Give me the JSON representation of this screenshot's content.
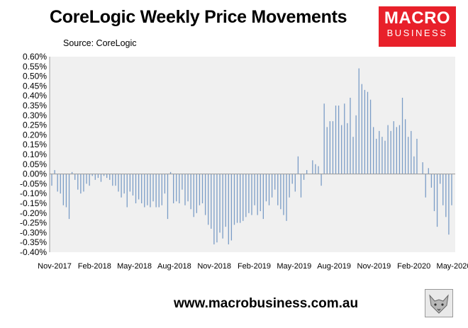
{
  "header": {
    "title": "CoreLogic Weekly Price Movements",
    "source": "Source: CoreLogic"
  },
  "logo": {
    "line1": "MACRO",
    "line2": "BUSINESS"
  },
  "footer": {
    "url": "www.macrobusiness.com.au"
  },
  "colors": {
    "bar": "#7a9cc6",
    "plot_bg": "#f0f0f0",
    "logo_bg": "#e8202a"
  },
  "chart_data": {
    "type": "bar",
    "title": "CoreLogic Weekly Price Movements",
    "source": "Source: CoreLogic",
    "ylim": [
      -0.4,
      0.6
    ],
    "y_ticks": [
      "0.60%",
      "0.55%",
      "0.50%",
      "0.45%",
      "0.40%",
      "0.35%",
      "0.30%",
      "0.25%",
      "0.20%",
      "0.15%",
      "0.10%",
      "0.05%",
      "0.00%",
      "-0.05%",
      "-0.10%",
      "-0.15%",
      "-0.20%",
      "-0.25%",
      "-0.30%",
      "-0.35%",
      "-0.40%"
    ],
    "x_ticks": [
      "Nov-2017",
      "Feb-2018",
      "May-2018",
      "Aug-2018",
      "Nov-2018",
      "Feb-2019",
      "May-2019",
      "Aug-2019",
      "Nov-2019",
      "Feb-2020",
      "May-2020"
    ],
    "grid": false,
    "legend": "none",
    "unit": "%",
    "series": [
      {
        "values": [
          -0.06,
          0.02,
          -0.09,
          -0.1,
          -0.16,
          -0.17,
          -0.23,
          0.01,
          -0.03,
          -0.08,
          -0.1,
          -0.09,
          -0.05,
          -0.06,
          -0.01,
          -0.03,
          -0.02,
          -0.04,
          -0.01,
          -0.02,
          -0.03,
          -0.06,
          -0.06,
          -0.09,
          -0.12,
          -0.1,
          -0.17,
          -0.09,
          -0.11,
          -0.15,
          -0.13,
          -0.15,
          -0.17,
          -0.16,
          -0.17,
          -0.14,
          -0.17,
          -0.17,
          -0.16,
          -0.1,
          -0.23,
          0.01,
          -0.15,
          -0.14,
          -0.15,
          -0.08,
          -0.16,
          -0.14,
          -0.18,
          -0.22,
          -0.2,
          -0.16,
          -0.15,
          -0.21,
          -0.26,
          -0.28,
          -0.36,
          -0.35,
          -0.3,
          -0.33,
          -0.27,
          -0.36,
          -0.34,
          -0.26,
          -0.25,
          -0.25,
          -0.24,
          -0.22,
          -0.2,
          -0.21,
          -0.16,
          -0.21,
          -0.19,
          -0.23,
          -0.14,
          -0.16,
          -0.12,
          -0.08,
          -0.16,
          -0.18,
          -0.21,
          -0.24,
          -0.12,
          -0.05,
          -0.09,
          0.09,
          -0.12,
          -0.03,
          0.02,
          0.0,
          0.07,
          0.05,
          0.04,
          -0.06,
          0.36,
          0.24,
          0.27,
          0.27,
          0.35,
          0.35,
          0.25,
          0.36,
          0.26,
          0.39,
          0.19,
          0.3,
          0.54,
          0.46,
          0.43,
          0.42,
          0.38,
          0.24,
          0.18,
          0.22,
          0.19,
          0.17,
          0.25,
          0.22,
          0.27,
          0.24,
          0.25,
          0.39,
          0.28,
          0.19,
          0.22,
          0.09,
          0.18,
          0.0,
          0.06,
          -0.12,
          0.03,
          -0.07,
          -0.19,
          -0.27,
          -0.05,
          -0.16,
          -0.22,
          -0.31,
          -0.16
        ]
      }
    ]
  }
}
